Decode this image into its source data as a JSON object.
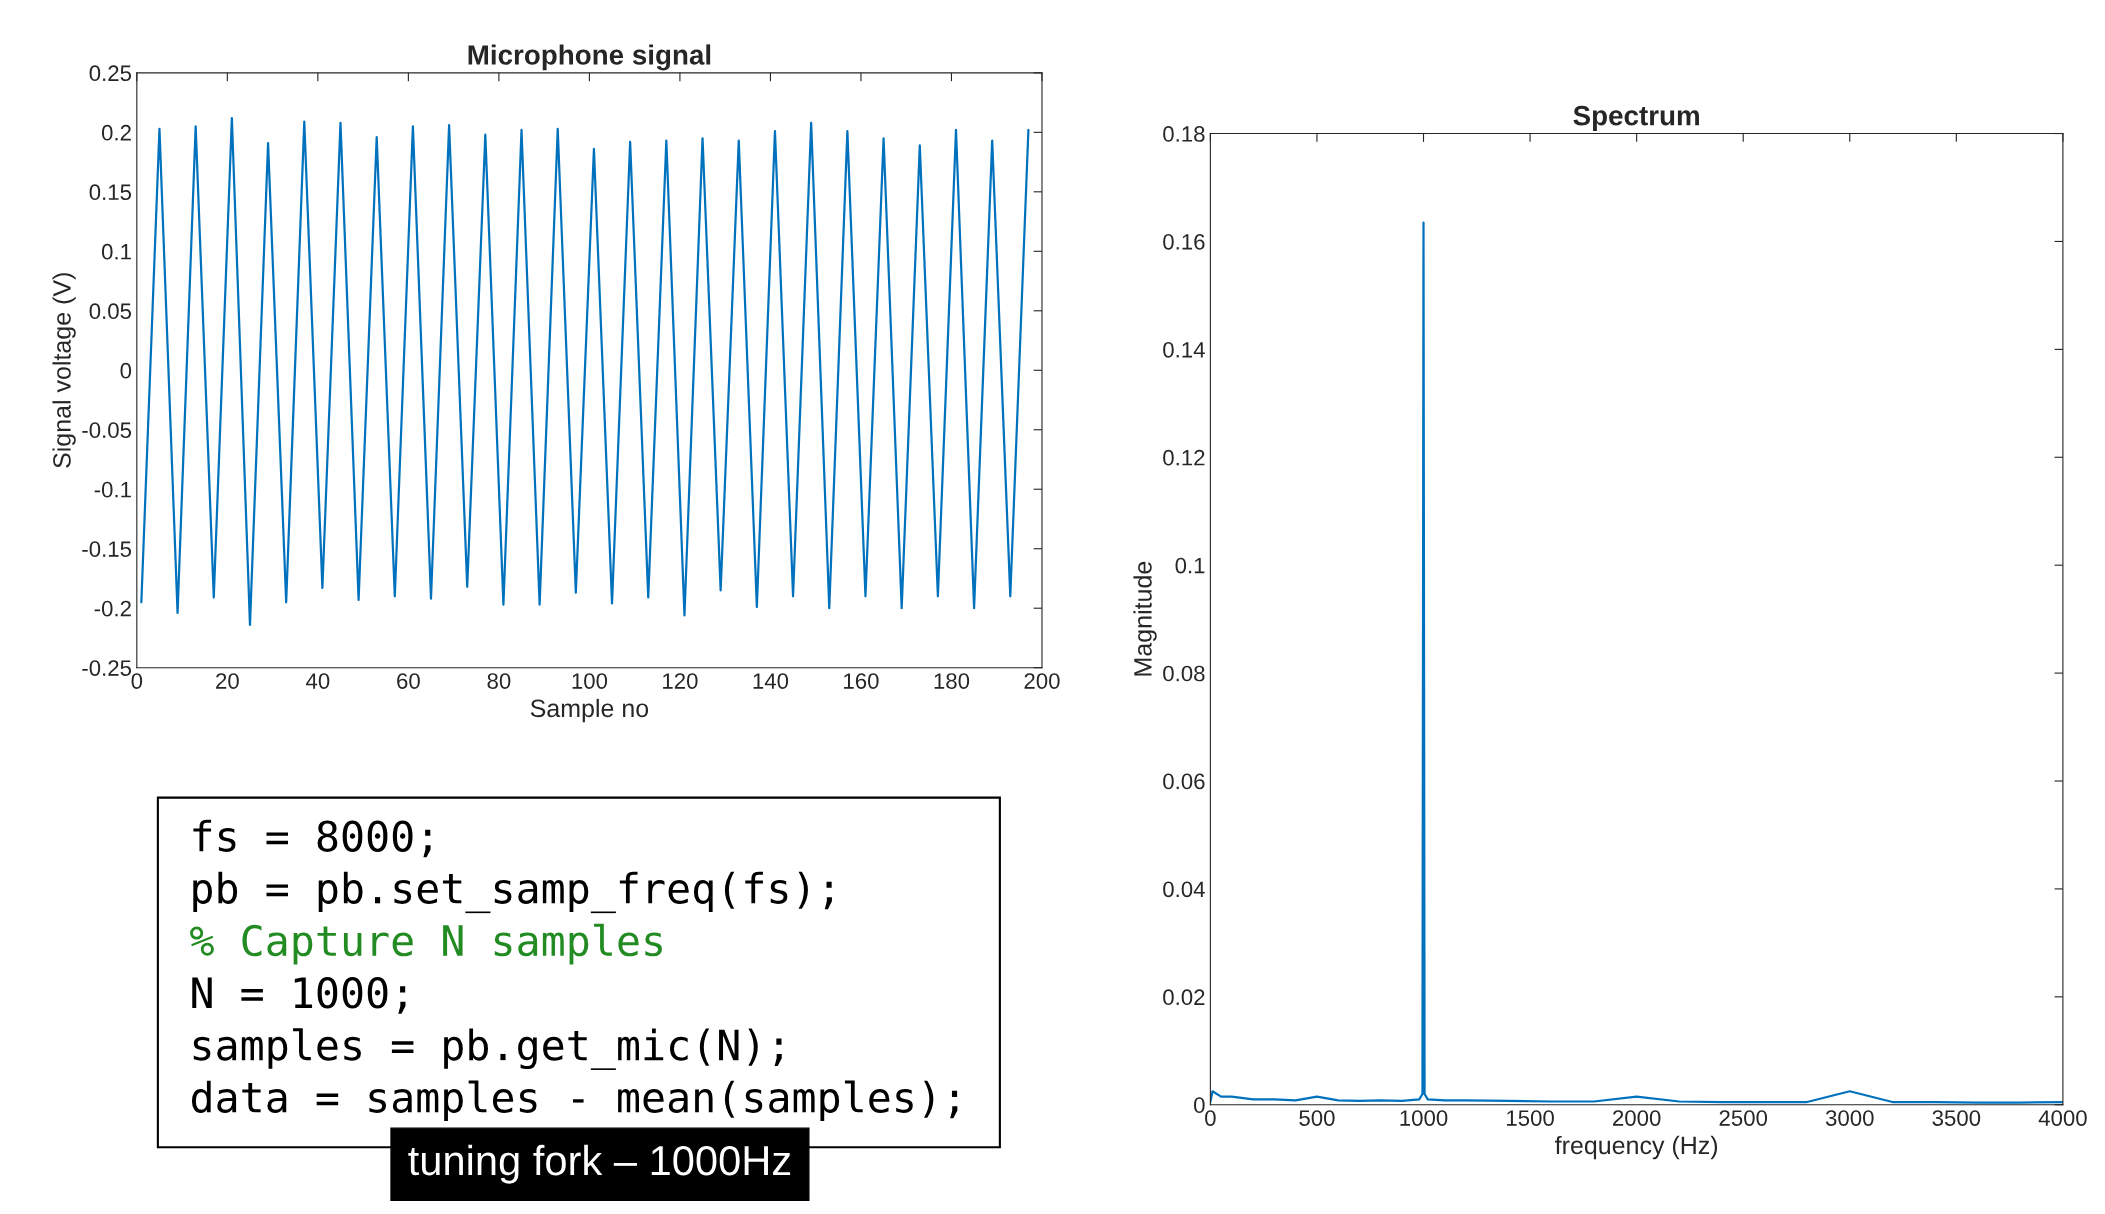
{
  "chart_data": [
    {
      "type": "line",
      "title": "Microphone signal",
      "xlabel": "Sample no",
      "ylabel": "Signal voltage (V)",
      "x": [
        1,
        5,
        9,
        13,
        17,
        21,
        25,
        29,
        33,
        37,
        41,
        45,
        49,
        53,
        57,
        61,
        65,
        69,
        73,
        77,
        81,
        85,
        89,
        93,
        97,
        101,
        105,
        109,
        113,
        117,
        121,
        125,
        129,
        133,
        137,
        141,
        145,
        149,
        153,
        157,
        161,
        165,
        169,
        173,
        177,
        181,
        185,
        189,
        193,
        197
      ],
      "series": [
        {
          "color": "#0072bd",
          "values": [
            -0.195,
            0.203,
            -0.204,
            0.205,
            -0.191,
            0.212,
            -0.214,
            0.191,
            -0.195,
            0.209,
            -0.183,
            0.208,
            -0.193,
            0.196,
            -0.19,
            0.205,
            -0.192,
            0.206,
            -0.182,
            0.198,
            -0.197,
            0.202,
            -0.197,
            0.203,
            -0.187,
            0.186,
            -0.196,
            0.192,
            -0.191,
            0.193,
            -0.206,
            0.195,
            -0.185,
            0.193,
            -0.199,
            0.201,
            -0.19,
            0.208,
            -0.2,
            0.201,
            -0.19,
            0.195,
            -0.2,
            0.189,
            -0.19,
            0.202,
            -0.2,
            0.193,
            -0.19,
            0.202
          ]
        }
      ],
      "xlim": [
        0,
        200
      ],
      "xticks": [
        0,
        20,
        40,
        60,
        80,
        100,
        120,
        140,
        160,
        180,
        200
      ],
      "ylim": [
        -0.25,
        0.25
      ],
      "yticks": [
        -0.25,
        -0.2,
        -0.15,
        -0.1,
        -0.05,
        0,
        0.05,
        0.1,
        0.15,
        0.2,
        0.25
      ],
      "grid": false,
      "legend": false,
      "annotations": [
        "fs = 8000;",
        "pb = pb.set_samp_freq(fs);",
        "% Capture N samples",
        "N = 1000;",
        "samples = pb.get_mic(N);",
        "data = samples - mean(samples);",
        "tuning fork – 1000Hz"
      ]
    },
    {
      "type": "line",
      "title": "Spectrum",
      "xlabel": "frequency (Hz)",
      "ylabel": "Magnitude",
      "x": [
        0,
        10,
        50,
        100,
        200,
        300,
        400,
        500,
        600,
        700,
        800,
        900,
        980,
        995,
        1000,
        1005,
        1020,
        1100,
        1200,
        1400,
        1600,
        1800,
        2000,
        2200,
        2400,
        2600,
        2800,
        3000,
        3200,
        3400,
        3600,
        3800,
        4000
      ],
      "series": [
        {
          "color": "#0072bd",
          "values": [
            0.0005,
            0.0025,
            0.0015,
            0.0015,
            0.001,
            0.001,
            0.0008,
            0.0015,
            0.0008,
            0.0007,
            0.0008,
            0.0007,
            0.001,
            0.002,
            0.1635,
            0.002,
            0.001,
            0.0008,
            0.0008,
            0.0007,
            0.0006,
            0.0006,
            0.0015,
            0.0006,
            0.0005,
            0.0005,
            0.0005,
            0.0025,
            0.0005,
            0.0005,
            0.0004,
            0.0004,
            0.0005
          ]
        }
      ],
      "xlim": [
        0,
        4000
      ],
      "xticks": [
        0,
        500,
        1000,
        1500,
        2000,
        2500,
        3000,
        3500,
        4000
      ],
      "ylim": [
        0,
        0.18
      ],
      "yticks": [
        0,
        0.02,
        0.04,
        0.06,
        0.08,
        0.1,
        0.12,
        0.14,
        0.16,
        0.18
      ],
      "grid": false,
      "legend": false
    }
  ]
}
